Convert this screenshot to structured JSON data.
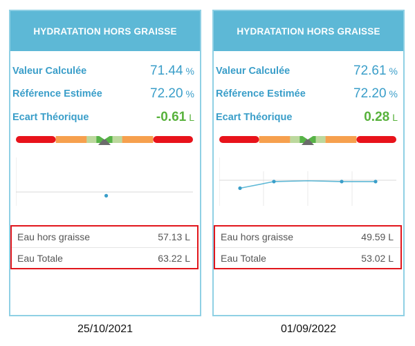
{
  "panels": [
    {
      "title": "HYDRATATION HORS GRAISSE",
      "metrics": [
        {
          "label": "Valeur Calculée",
          "value": "71.44",
          "unit": "%"
        },
        {
          "label": "Référence Estimée",
          "value": "72.20",
          "unit": "%"
        },
        {
          "label": "Ecart Théorique",
          "value": "-0.61",
          "unit": "L"
        }
      ],
      "details": [
        {
          "label": "Eau hors graisse",
          "value": "57.13 L"
        },
        {
          "label": "Eau Totale",
          "value": "63.22 L"
        }
      ],
      "date": "25/10/2021",
      "trend_points": [
        0.38
      ],
      "gauge_marker": 0.5
    },
    {
      "title": "HYDRATATION HORS GRAISSE",
      "metrics": [
        {
          "label": "Valeur Calculée",
          "value": "72.61",
          "unit": "%"
        },
        {
          "label": "Référence Estimée",
          "value": "72.20",
          "unit": "%"
        },
        {
          "label": "Ecart Théorique",
          "value": "0.28",
          "unit": "L"
        }
      ],
      "details": [
        {
          "label": "Eau hors graisse",
          "value": "49.59 L"
        },
        {
          "label": "Eau Totale",
          "value": "53.02 L"
        }
      ],
      "date": "01/09/2022",
      "trend_points": [
        0.35,
        0.6,
        0.63,
        0.6,
        0.6
      ],
      "gauge_marker": 0.5
    }
  ],
  "colors": {
    "header_bg": "#5db8d6",
    "card_border": "#8fd0e4",
    "label_blue": "#3a9ec9",
    "positive_green": "#58b23c",
    "highlight_red": "#e1151b",
    "gauge_segments": [
      "#e8131b",
      "#f6a04e",
      "#bcd89d",
      "#57b347",
      "#bcd89d",
      "#f6a04e",
      "#e8131b"
    ]
  }
}
